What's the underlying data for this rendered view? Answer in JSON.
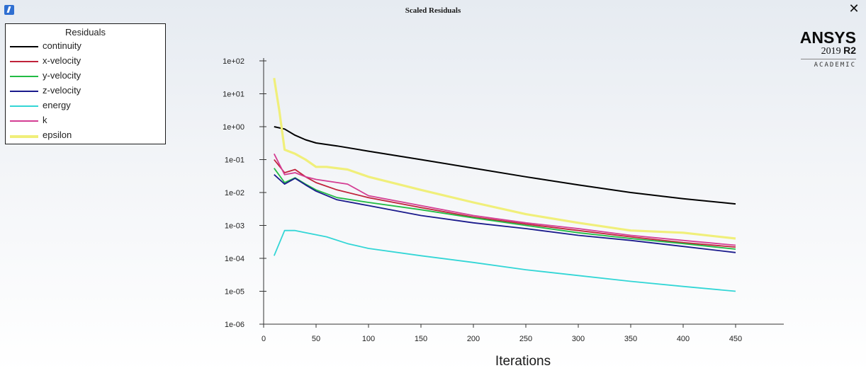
{
  "window": {
    "title": "Scaled Residuals",
    "close_glyph": "✕",
    "app_icon": "fluent-app-icon"
  },
  "logo": {
    "name": "ANSYS",
    "version": "2019",
    "release": "R2",
    "edition": "ACADEMIC"
  },
  "legend": {
    "title": "Residuals"
  },
  "chart_data": {
    "type": "line",
    "title": "",
    "xlabel": "Iterations",
    "ylabel": "",
    "xlim": [
      0,
      500
    ],
    "ylim": [
      1e-06,
      100
    ],
    "yscale": "log",
    "grid": false,
    "legend_position": "top-left",
    "x_ticks": [
      0,
      50,
      100,
      150,
      200,
      250,
      300,
      350,
      400,
      450
    ],
    "y_ticks": [
      1e-06,
      1e-05,
      0.0001,
      0.001,
      0.01,
      0.1,
      1,
      10,
      100
    ],
    "y_tick_labels": [
      "1e-06",
      "1e-05",
      "1e-04",
      "1e-03",
      "1e-02",
      "1e-01",
      "1e+00",
      "1e+01",
      "1e+02"
    ],
    "series": [
      {
        "name": "continuity",
        "color": "#000000",
        "x": [
          10,
          20,
          30,
          40,
          50,
          70,
          100,
          150,
          200,
          250,
          300,
          350,
          400,
          450
        ],
        "y": [
          1.0,
          0.85,
          0.55,
          0.4,
          0.32,
          0.26,
          0.18,
          0.1,
          0.055,
          0.03,
          0.017,
          0.01,
          0.0065,
          0.0045
        ]
      },
      {
        "name": "x-velocity",
        "color": "#c0223a",
        "x": [
          10,
          20,
          30,
          40,
          50,
          70,
          100,
          150,
          200,
          250,
          300,
          350,
          400,
          450
        ],
        "y": [
          0.1,
          0.04,
          0.05,
          0.03,
          0.02,
          0.012,
          0.007,
          0.0035,
          0.0018,
          0.0011,
          0.0007,
          0.00045,
          0.0003,
          0.00022
        ]
      },
      {
        "name": "y-velocity",
        "color": "#22bb44",
        "x": [
          10,
          20,
          30,
          40,
          50,
          70,
          100,
          150,
          200,
          250,
          300,
          350,
          400,
          450
        ],
        "y": [
          0.055,
          0.02,
          0.028,
          0.018,
          0.012,
          0.007,
          0.005,
          0.003,
          0.0017,
          0.001,
          0.0006,
          0.0004,
          0.00028,
          0.00019
        ]
      },
      {
        "name": "z-velocity",
        "color": "#1a1a8c",
        "x": [
          10,
          20,
          30,
          40,
          50,
          70,
          100,
          150,
          200,
          250,
          300,
          350,
          400,
          450
        ],
        "y": [
          0.035,
          0.018,
          0.027,
          0.017,
          0.011,
          0.006,
          0.004,
          0.002,
          0.0012,
          0.0008,
          0.0005,
          0.00035,
          0.00023,
          0.00015
        ]
      },
      {
        "name": "energy",
        "color": "#33d6d6",
        "x": [
          10,
          20,
          30,
          40,
          60,
          80,
          100,
          150,
          200,
          250,
          300,
          350,
          400,
          450
        ],
        "y": [
          0.00012,
          0.0007,
          0.0007,
          0.0006,
          0.00045,
          0.00028,
          0.0002,
          0.00012,
          7.5e-05,
          4.5e-05,
          3e-05,
          2e-05,
          1.4e-05,
          1e-05
        ]
      },
      {
        "name": "k",
        "color": "#d43d93",
        "x": [
          10,
          20,
          30,
          40,
          50,
          80,
          100,
          150,
          200,
          250,
          300,
          350,
          400,
          450
        ],
        "y": [
          0.15,
          0.035,
          0.04,
          0.03,
          0.025,
          0.018,
          0.008,
          0.004,
          0.002,
          0.0012,
          0.0008,
          0.0005,
          0.00035,
          0.00025
        ]
      },
      {
        "name": "epsilon",
        "color": "#f0ef7a",
        "x": [
          10,
          15,
          20,
          30,
          40,
          50,
          60,
          80,
          100,
          150,
          200,
          250,
          300,
          350,
          400,
          450
        ],
        "y": [
          30.0,
          3.0,
          0.2,
          0.15,
          0.1,
          0.06,
          0.06,
          0.05,
          0.03,
          0.012,
          0.005,
          0.0022,
          0.0012,
          0.0007,
          0.0006,
          0.0004
        ]
      }
    ]
  }
}
